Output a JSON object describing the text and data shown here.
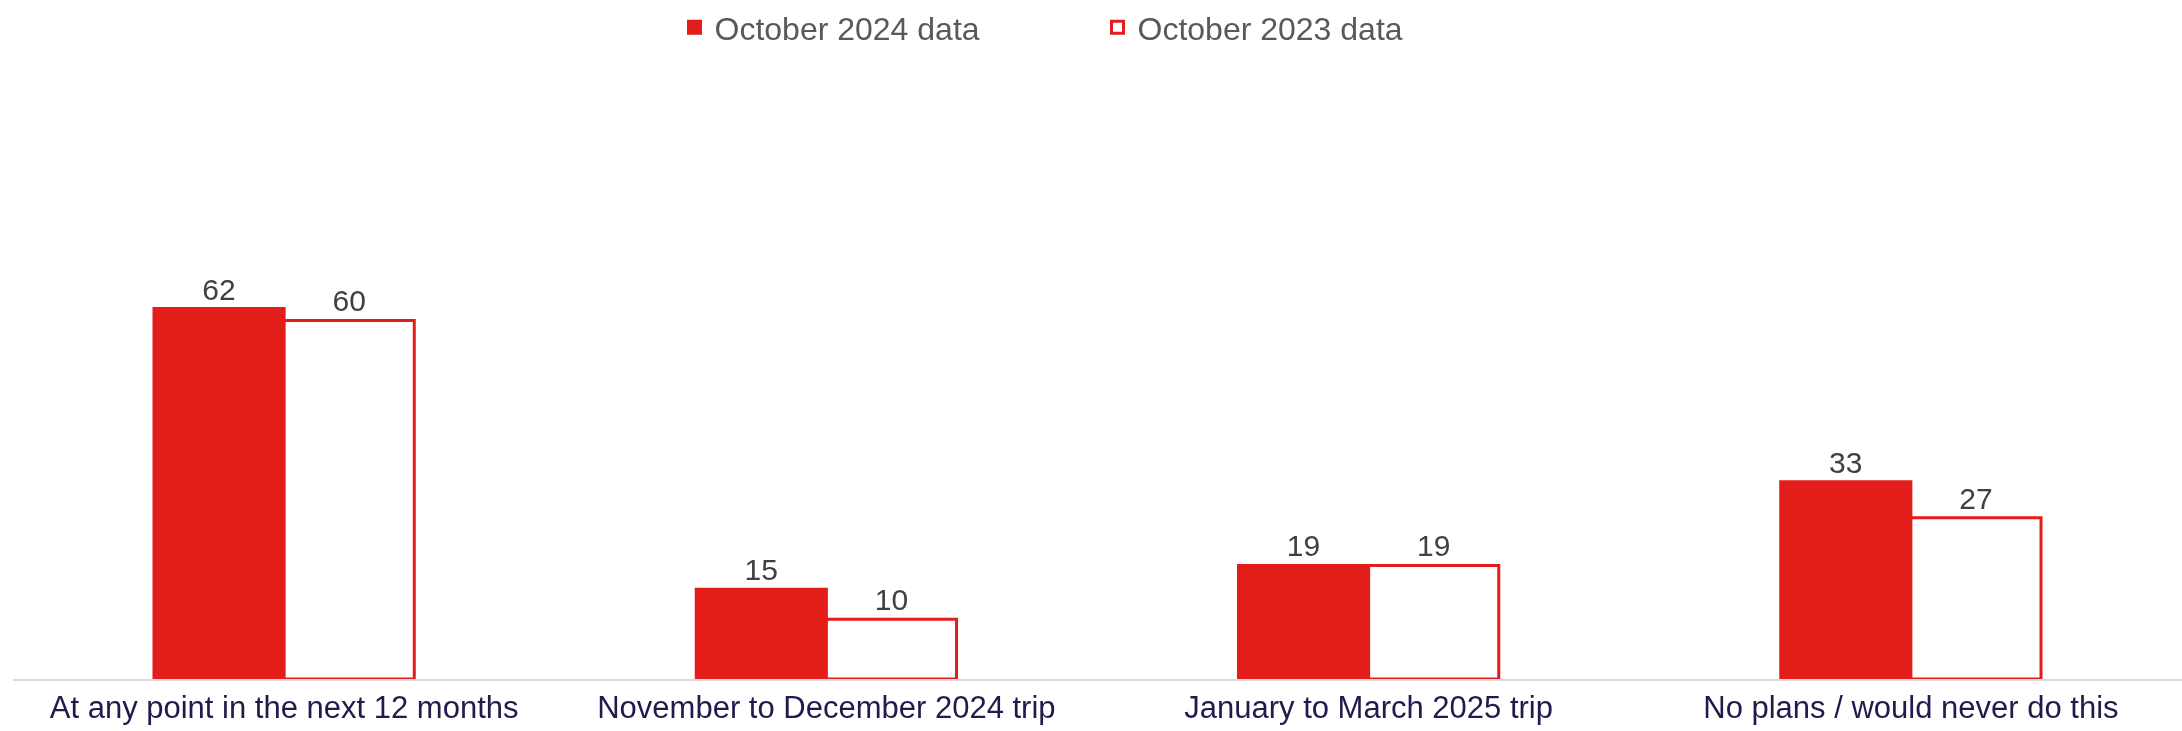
{
  "chart_data": {
    "type": "bar",
    "categories": [
      "At any point in the next 12 months",
      "November to December 2024 trip",
      "January to March 2025 trip",
      "No plans / would never do this"
    ],
    "series": [
      {
        "name": "October 2024 data",
        "color": "#e31e1a",
        "values": [
          62,
          15,
          19,
          33
        ]
      },
      {
        "name": "October 2023 data",
        "color": "#ffffff",
        "values": [
          60,
          10,
          19,
          27
        ]
      }
    ],
    "data_labels": true,
    "legend": "top",
    "grid": false
  }
}
